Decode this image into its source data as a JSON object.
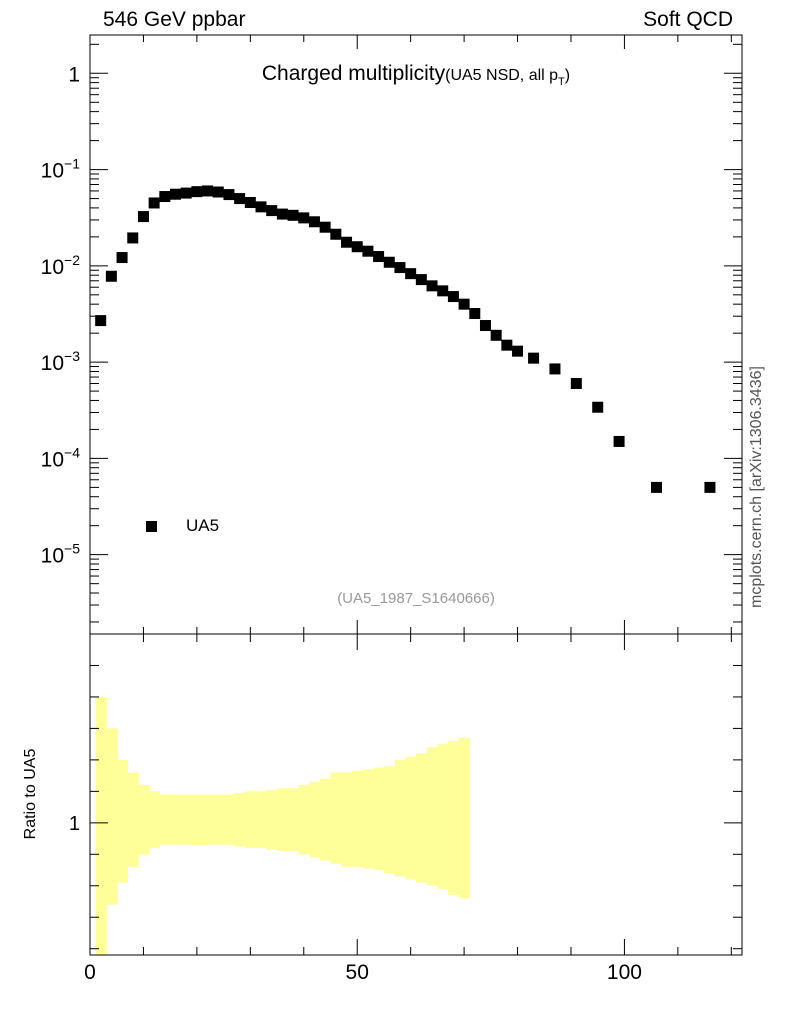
{
  "header": {
    "left": "546 GeV ppbar",
    "right": "Soft QCD"
  },
  "side_note": "mcplots.cern.ch [arXiv:1306.3436]",
  "plot": {
    "title_main": "Charged multiplicity",
    "title_sub_prefix": "(UA5 NSD, all p",
    "title_sub_index": "T",
    "title_sub_suffix": ")",
    "analysis_id": "(UA5_1987_S1640666)",
    "legend_label": "UA5",
    "ratio_ylabel": "Ratio to UA5"
  },
  "colors": {
    "data": "#000000",
    "band": "#ffff99"
  },
  "chart_data": [
    {
      "type": "scatter",
      "xlim": [
        0,
        122
      ],
      "yscale": "log",
      "ylim": [
        1.5e-06,
        2.5
      ],
      "yticks": [
        {
          "value": 1,
          "label": "1"
        },
        {
          "value": 0.1,
          "label": "10",
          "exp": "−1"
        },
        {
          "value": 0.01,
          "label": "10",
          "exp": "−2"
        },
        {
          "value": 0.001,
          "label": "10",
          "exp": "−3"
        },
        {
          "value": 0.0001,
          "label": "10",
          "exp": "−4"
        },
        {
          "value": 1e-05,
          "label": "10",
          "exp": "−5"
        }
      ],
      "series": [
        {
          "name": "UA5",
          "x": [
            2,
            4,
            6,
            8,
            10,
            12,
            14,
            16,
            18,
            20,
            22,
            24,
            26,
            28,
            30,
            32,
            34,
            36,
            38,
            40,
            42,
            44,
            46,
            48,
            50,
            52,
            54,
            56,
            58,
            60,
            62,
            64,
            66,
            68,
            70,
            72,
            74,
            76,
            78,
            80,
            83,
            87,
            91,
            95,
            99,
            106,
            116
          ],
          "y": [
            0.0027,
            0.0078,
            0.0122,
            0.0195,
            0.0325,
            0.045,
            0.0525,
            0.0555,
            0.057,
            0.059,
            0.06,
            0.0585,
            0.055,
            0.05,
            0.0455,
            0.041,
            0.0375,
            0.0345,
            0.0335,
            0.0315,
            0.0287,
            0.0252,
            0.0213,
            0.0176,
            0.0158,
            0.0142,
            0.0125,
            0.0109,
            0.0096,
            0.0083,
            0.0072,
            0.0062,
            0.0055,
            0.0048,
            0.004,
            0.0032,
            0.0024,
            0.0019,
            0.0015,
            0.0013,
            0.0011,
            0.00085,
            0.0006,
            0.00034,
            0.00015,
            5e-05,
            5e-05
          ]
        }
      ]
    },
    {
      "type": "area",
      "xlim": [
        0,
        122
      ],
      "ylim": [
        0.58,
        1.6
      ],
      "yticks": [
        {
          "value": 1,
          "label": "1"
        }
      ],
      "xticks": [
        {
          "value": 0,
          "label": "0"
        },
        {
          "value": 50,
          "label": "50"
        },
        {
          "value": 100,
          "label": "100"
        }
      ],
      "series": [
        {
          "name": "UA5",
          "bins": [
            {
              "x0": 1,
              "x1": 3,
              "lo": 0.58,
              "hi": 1.4
            },
            {
              "x0": 3,
              "x1": 5,
              "lo": 0.74,
              "hi": 1.3
            },
            {
              "x0": 5,
              "x1": 7,
              "lo": 0.81,
              "hi": 1.2
            },
            {
              "x0": 7,
              "x1": 9,
              "lo": 0.86,
              "hi": 1.16
            },
            {
              "x0": 9,
              "x1": 11,
              "lo": 0.9,
              "hi": 1.12
            },
            {
              "x0": 11,
              "x1": 13,
              "lo": 0.92,
              "hi": 1.1
            },
            {
              "x0": 13,
              "x1": 15,
              "lo": 0.93,
              "hi": 1.09
            },
            {
              "x0": 15,
              "x1": 17,
              "lo": 0.93,
              "hi": 1.09
            },
            {
              "x0": 17,
              "x1": 19,
              "lo": 0.93,
              "hi": 1.09
            },
            {
              "x0": 19,
              "x1": 21,
              "lo": 0.93,
              "hi": 1.09
            },
            {
              "x0": 21,
              "x1": 23,
              "lo": 0.93,
              "hi": 1.09
            },
            {
              "x0": 23,
              "x1": 25,
              "lo": 0.93,
              "hi": 1.09
            },
            {
              "x0": 25,
              "x1": 27,
              "lo": 0.93,
              "hi": 1.09
            },
            {
              "x0": 27,
              "x1": 29,
              "lo": 0.925,
              "hi": 1.095
            },
            {
              "x0": 29,
              "x1": 31,
              "lo": 0.92,
              "hi": 1.1
            },
            {
              "x0": 31,
              "x1": 33,
              "lo": 0.92,
              "hi": 1.1
            },
            {
              "x0": 33,
              "x1": 35,
              "lo": 0.915,
              "hi": 1.105
            },
            {
              "x0": 35,
              "x1": 37,
              "lo": 0.91,
              "hi": 1.11
            },
            {
              "x0": 37,
              "x1": 39,
              "lo": 0.91,
              "hi": 1.11
            },
            {
              "x0": 39,
              "x1": 41,
              "lo": 0.9,
              "hi": 1.12
            },
            {
              "x0": 41,
              "x1": 43,
              "lo": 0.89,
              "hi": 1.13
            },
            {
              "x0": 43,
              "x1": 45,
              "lo": 0.88,
              "hi": 1.14
            },
            {
              "x0": 45,
              "x1": 47,
              "lo": 0.87,
              "hi": 1.16
            },
            {
              "x0": 47,
              "x1": 49,
              "lo": 0.86,
              "hi": 1.16
            },
            {
              "x0": 49,
              "x1": 51,
              "lo": 0.86,
              "hi": 1.165
            },
            {
              "x0": 51,
              "x1": 53,
              "lo": 0.855,
              "hi": 1.17
            },
            {
              "x0": 53,
              "x1": 55,
              "lo": 0.85,
              "hi": 1.175
            },
            {
              "x0": 55,
              "x1": 57,
              "lo": 0.84,
              "hi": 1.18
            },
            {
              "x0": 57,
              "x1": 59,
              "lo": 0.83,
              "hi": 1.2
            },
            {
              "x0": 59,
              "x1": 61,
              "lo": 0.82,
              "hi": 1.21
            },
            {
              "x0": 61,
              "x1": 63,
              "lo": 0.81,
              "hi": 1.22
            },
            {
              "x0": 63,
              "x1": 65,
              "lo": 0.8,
              "hi": 1.24
            },
            {
              "x0": 65,
              "x1": 67,
              "lo": 0.79,
              "hi": 1.25
            },
            {
              "x0": 67,
              "x1": 69,
              "lo": 0.77,
              "hi": 1.26
            },
            {
              "x0": 69,
              "x1": 71,
              "lo": 0.76,
              "hi": 1.27
            }
          ]
        }
      ]
    }
  ]
}
